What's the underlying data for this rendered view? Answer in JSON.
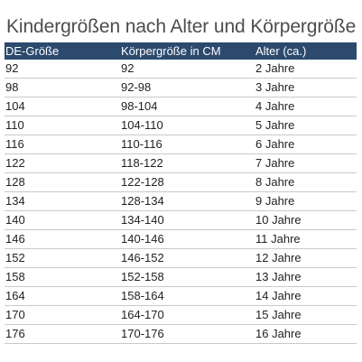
{
  "title": "Kindergrößen nach Alter und Körpergröße",
  "table": {
    "headers": [
      "DE-Größe",
      "Körpergröße in CM",
      "Alter (ca.)"
    ],
    "rows": [
      [
        "92",
        "92",
        "2 Jahre"
      ],
      [
        "98",
        "92-98",
        "3 Jahre"
      ],
      [
        "104",
        "98-104",
        "4 Jahre"
      ],
      [
        "110",
        "104-110",
        "5 Jahre"
      ],
      [
        "116",
        "110-116",
        "6 Jahre"
      ],
      [
        "122",
        "118-122",
        "7 Jahre"
      ],
      [
        "128",
        "122-128",
        "8 Jahre"
      ],
      [
        "134",
        "128-134",
        "9 Jahre"
      ],
      [
        "140",
        "134-140",
        "10 Jahre"
      ],
      [
        "146",
        "140-146",
        "11 Jahre"
      ],
      [
        "152",
        "146-152",
        "12 Jahre"
      ],
      [
        "158",
        "152-158",
        "13 Jahre"
      ],
      [
        "164",
        "158-164",
        "14 Jahre"
      ],
      [
        "170",
        "164-170",
        "15 Jahre"
      ],
      [
        "176",
        "170-176",
        "16 Jahre"
      ]
    ]
  },
  "colors": {
    "header_background": "#2c4a6e",
    "header_text": "#ffffff",
    "title_text": "#4d4d4d",
    "row_divider": "#c9c9c9"
  }
}
